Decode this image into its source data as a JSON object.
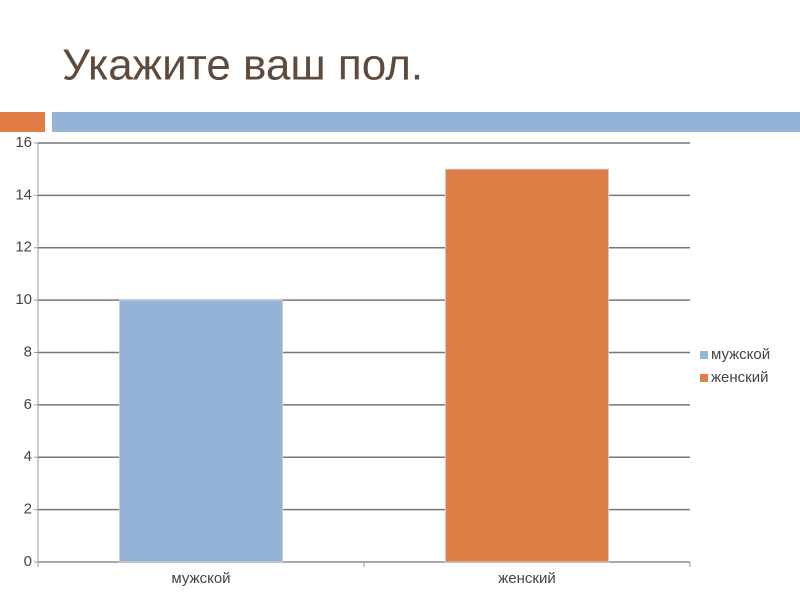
{
  "chart_data": {
    "type": "bar",
    "title": "Укажите ваш пол.",
    "categories": [
      "мужской",
      "женский"
    ],
    "values": [
      10,
      15
    ],
    "colors": [
      "#95b3d7",
      "#dd7e47"
    ],
    "ylim": [
      0,
      16
    ],
    "yticks": [
      0,
      2,
      4,
      6,
      8,
      10,
      12,
      14,
      16
    ],
    "grid": true,
    "legend": "right"
  }
}
